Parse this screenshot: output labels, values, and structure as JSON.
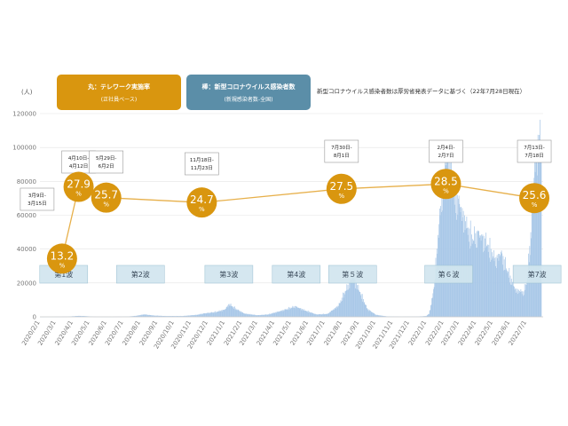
{
  "chart_data": {
    "type": "bar+line",
    "y_unit": "(人)",
    "yticks": [
      0,
      20000,
      40000,
      60000,
      80000,
      100000,
      120000
    ],
    "ylim": [
      0,
      120000
    ],
    "xticks": [
      "2020/2/1",
      "2020/3/1",
      "2020/4/1",
      "2020/5/1",
      "2020/6/1",
      "2020/7/1",
      "2020/8/1",
      "2020/9/1",
      "2020/10/1",
      "2020/11/1",
      "2020/12/1",
      "2021/1/1",
      "2021/2/1",
      "2021/3/1",
      "2021/4/1",
      "2021/5/1",
      "2021/6/1",
      "2021/7/1",
      "2021/8/1",
      "2021/9/1",
      "2021/10/1",
      "2021/11/1",
      "2021/12/1",
      "2022/1/1",
      "2022/2/1",
      "2022/3/1",
      "2022/4/1",
      "2022/5/1",
      "2022/6/1",
      "2022/7/1"
    ],
    "legend": {
      "circle": {
        "title": "丸：テレワーク実施率",
        "sub": "(正社員ベース)",
        "color": "#d9960f"
      },
      "bar": {
        "title": "棒：新型コロナウイルス感染者数",
        "sub": "(新規感染者数-全国)",
        "color": "#5b8ea8"
      }
    },
    "note": "新型コロナウイルス感染者数は厚労省発表データに基づく（22年7月28日現在）",
    "telework_series": {
      "name": "テレワーク実施率",
      "points": [
        {
          "date": "2020-03-12",
          "value": 13.2,
          "period": [
            "3月9日-",
            "3月15日"
          ]
        },
        {
          "date": "2020-04-11",
          "value": 27.9,
          "period": [
            "4月10日-",
            "4月12日"
          ]
        },
        {
          "date": "2020-05-31",
          "value": 25.7,
          "period": [
            "5月29日-",
            "6月2日"
          ]
        },
        {
          "date": "2020-11-20",
          "value": 24.7,
          "period": [
            "11月18日-",
            "11月23日"
          ]
        },
        {
          "date": "2021-07-31",
          "value": 27.5,
          "period": [
            "7月30日-",
            "8月1日"
          ]
        },
        {
          "date": "2022-02-05",
          "value": 28.5,
          "period": [
            "2月4日-",
            "2月7日"
          ]
        },
        {
          "date": "2022-07-15",
          "value": 25.6,
          "period": [
            "7月13日-",
            "7月18日"
          ]
        }
      ],
      "pct_symbol": "%"
    },
    "waves": [
      {
        "label": "第1波",
        "date": "2020-03-15"
      },
      {
        "label": "第2波",
        "date": "2020-08-01"
      },
      {
        "label": "第3波",
        "date": "2021-01-08"
      },
      {
        "label": "第4波",
        "date": "2021-05-10"
      },
      {
        "label": "第５波",
        "date": "2021-08-20"
      },
      {
        "label": "第６波",
        "date": "2022-02-10"
      },
      {
        "label": "第7波",
        "date": "2022-07-20"
      }
    ],
    "infection_series": {
      "name": "新規感染者数",
      "bar_color": "#a9c8e8",
      "points": [
        [
          "2020-02-01",
          10
        ],
        [
          "2020-03-01",
          50
        ],
        [
          "2020-03-20",
          100
        ],
        [
          "2020-04-10",
          600
        ],
        [
          "2020-04-20",
          500
        ],
        [
          "2020-05-10",
          80
        ],
        [
          "2020-06-10",
          40
        ],
        [
          "2020-07-10",
          200
        ],
        [
          "2020-07-25",
          700
        ],
        [
          "2020-08-07",
          1500
        ],
        [
          "2020-08-25",
          800
        ],
        [
          "2020-09-15",
          500
        ],
        [
          "2020-10-15",
          500
        ],
        [
          "2020-11-10",
          1200
        ],
        [
          "2020-11-25",
          2200
        ],
        [
          "2020-12-15",
          3000
        ],
        [
          "2020-12-31",
          4500
        ],
        [
          "2021-01-08",
          7900
        ],
        [
          "2021-01-20",
          5000
        ],
        [
          "2021-02-05",
          2000
        ],
        [
          "2021-02-28",
          1000
        ],
        [
          "2021-03-20",
          1500
        ],
        [
          "2021-04-15",
          4000
        ],
        [
          "2021-05-08",
          6500
        ],
        [
          "2021-05-25",
          4000
        ],
        [
          "2021-06-15",
          1500
        ],
        [
          "2021-07-05",
          1800
        ],
        [
          "2021-07-25",
          7000
        ],
        [
          "2021-08-05",
          15000
        ],
        [
          "2021-08-20",
          25000
        ],
        [
          "2021-09-01",
          16000
        ],
        [
          "2021-09-15",
          5000
        ],
        [
          "2021-10-01",
          1200
        ],
        [
          "2021-10-20",
          300
        ],
        [
          "2021-11-15",
          150
        ],
        [
          "2021-12-15",
          200
        ],
        [
          "2021-12-31",
          500
        ],
        [
          "2022-01-05",
          2000
        ],
        [
          "2022-01-10",
          10000
        ],
        [
          "2022-01-15",
          22000
        ],
        [
          "2022-01-20",
          45000
        ],
        [
          "2022-01-25",
          65000
        ],
        [
          "2022-02-01",
          85000
        ],
        [
          "2022-02-05",
          104000
        ],
        [
          "2022-02-10",
          95000
        ],
        [
          "2022-02-20",
          75000
        ],
        [
          "2022-03-01",
          70000
        ],
        [
          "2022-03-15",
          55000
        ],
        [
          "2022-03-25",
          48000
        ],
        [
          "2022-04-05",
          52000
        ],
        [
          "2022-04-20",
          45000
        ],
        [
          "2022-05-05",
          35000
        ],
        [
          "2022-05-15",
          40000
        ],
        [
          "2022-05-25",
          30000
        ],
        [
          "2022-06-10",
          17000
        ],
        [
          "2022-06-25",
          15000
        ],
        [
          "2022-07-01",
          22000
        ],
        [
          "2022-07-08",
          50000
        ],
        [
          "2022-07-15",
          95000
        ],
        [
          "2022-07-22",
          110000
        ],
        [
          "2022-07-27",
          108000
        ]
      ]
    }
  }
}
